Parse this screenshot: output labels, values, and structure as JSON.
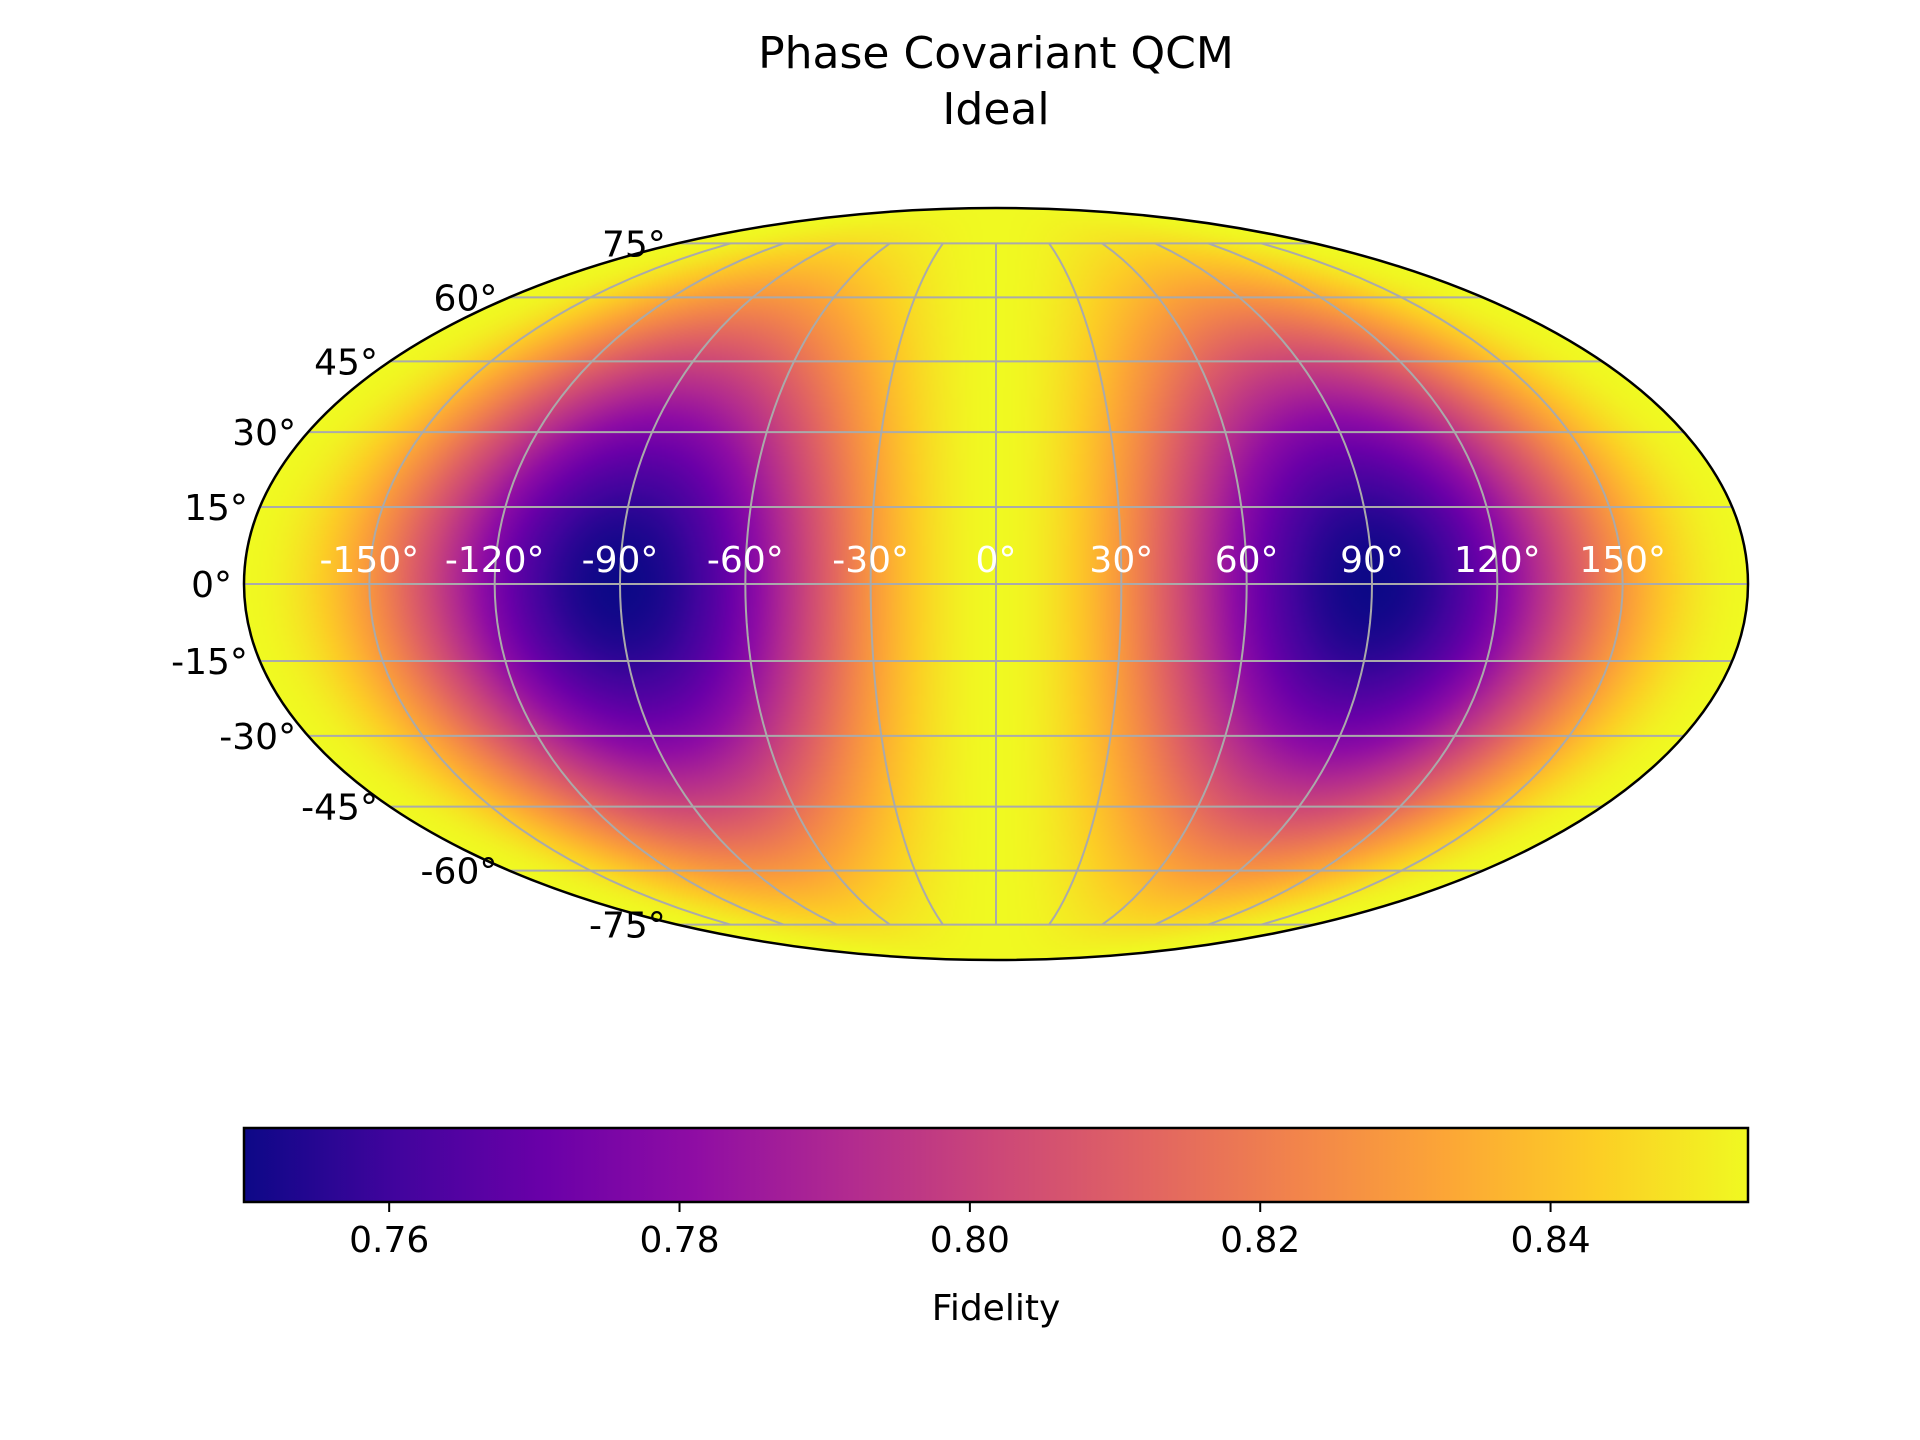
{
  "chart_data": {
    "type": "heatmap",
    "projection": "mollweide",
    "title_lines": [
      "Phase Covariant QCM",
      "Ideal"
    ],
    "colormap": "plasma",
    "grid": true,
    "grid_color": "#aaaaaa",
    "longitude_label_color": "#ffffff",
    "longitude_ticks": [
      -150,
      -120,
      -90,
      -60,
      -30,
      0,
      30,
      60,
      90,
      120,
      150
    ],
    "longitude_tick_labels": [
      "-150°",
      "-120°",
      "-90°",
      "-60°",
      "-30°",
      "0°",
      "30°",
      "60°",
      "90°",
      "120°",
      "150°"
    ],
    "latitude_ticks": [
      75,
      60,
      45,
      30,
      15,
      0,
      -15,
      -30,
      -45,
      -60,
      -75
    ],
    "latitude_tick_labels": [
      "75°",
      "60°",
      "45°",
      "30°",
      "15°",
      "0°",
      "-15°",
      "-30°",
      "-45°",
      "-60°",
      "-75°"
    ],
    "field": {
      "max_value": 0.8536,
      "min_value": 0.75,
      "max_where": "poles and longitudes 0° / ±180°",
      "min_where": "equator at longitudes ±90°"
    },
    "colorbar": {
      "orientation": "horizontal",
      "label": "Fidelity",
      "range": [
        0.75,
        0.8536
      ],
      "ticks": [
        0.76,
        0.78,
        0.8,
        0.82,
        0.84
      ],
      "tick_labels": [
        "0.76",
        "0.78",
        "0.80",
        "0.82",
        "0.84"
      ]
    }
  }
}
